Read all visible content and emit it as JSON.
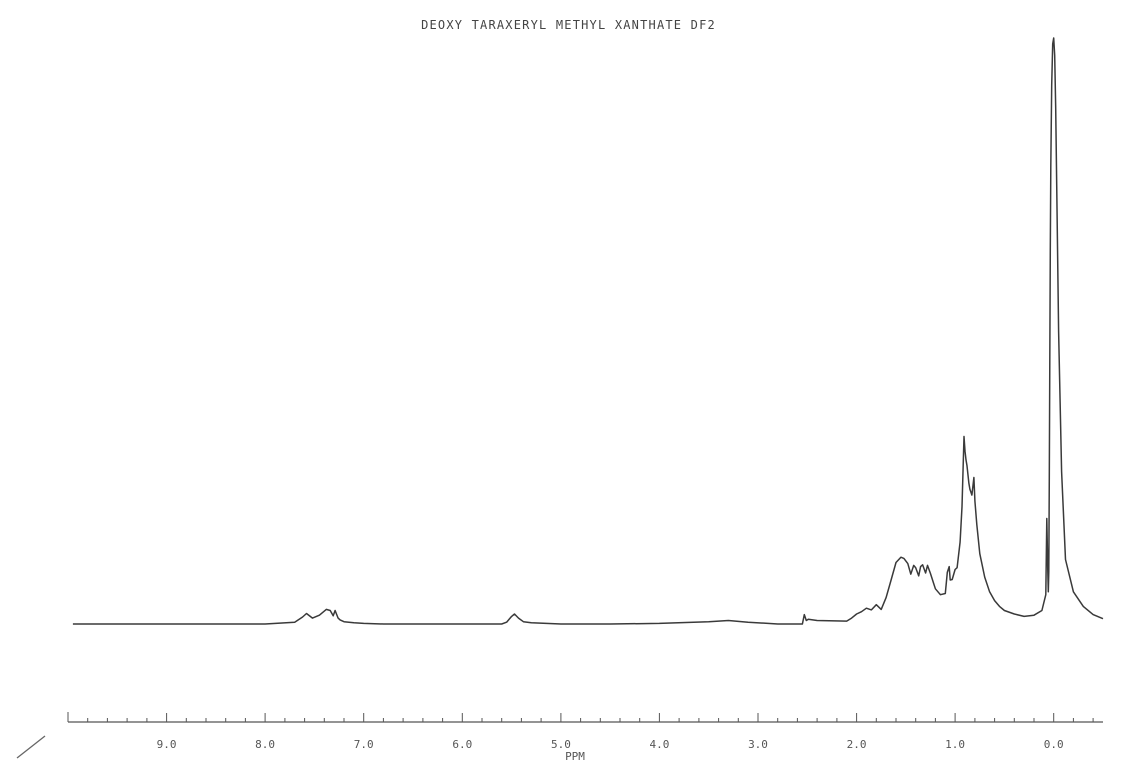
{
  "chart_data": {
    "type": "line",
    "title": "DEOXY TARAXERYL METHYL XANTHATE DF2",
    "xlabel": "PPM",
    "ylabel": "",
    "xlim": [
      10.0,
      -0.5
    ],
    "ylim": [
      0,
      100
    ],
    "grid": false,
    "x_ticks": [
      9.0,
      8.0,
      7.0,
      6.0,
      5.0,
      4.0,
      3.0,
      2.0,
      1.0,
      0.0
    ],
    "tick_labels": [
      "9.0",
      "8.0",
      "7.0",
      "6.0",
      "5.0",
      "4.0",
      "3.0",
      "2.0",
      "1.0",
      "0.0"
    ],
    "series": [
      {
        "x": [
          9.95,
          9.0,
          8.0,
          7.7,
          7.62,
          7.58,
          7.52,
          7.45,
          7.38,
          7.34,
          7.31,
          7.29,
          7.26,
          7.24,
          7.2,
          7.1,
          7.0,
          6.8,
          6.5,
          6.0,
          5.6,
          5.55,
          5.5,
          5.47,
          5.43,
          5.38,
          5.3,
          5.0,
          4.5,
          4.0,
          3.5,
          3.3,
          3.1,
          2.8,
          2.55,
          2.53,
          2.51,
          2.49,
          2.4,
          2.1,
          2.05,
          2.0,
          1.95,
          1.9,
          1.85,
          1.8,
          1.75,
          1.7,
          1.65,
          1.6,
          1.55,
          1.52,
          1.48,
          1.45,
          1.42,
          1.4,
          1.37,
          1.35,
          1.33,
          1.3,
          1.28,
          1.25,
          1.22,
          1.2,
          1.15,
          1.1,
          1.08,
          1.06,
          1.05,
          1.03,
          1.0,
          0.98,
          0.95,
          0.93,
          0.91,
          0.9,
          0.89,
          0.88,
          0.86,
          0.85,
          0.84,
          0.83,
          0.82,
          0.81,
          0.8,
          0.78,
          0.75,
          0.7,
          0.65,
          0.6,
          0.55,
          0.5,
          0.4,
          0.3,
          0.2,
          0.12,
          0.08,
          0.07,
          0.06,
          0.055,
          0.05,
          0.045,
          0.04,
          0.035,
          0.03,
          0.02,
          0.01,
          0.0,
          -0.01,
          -0.02,
          -0.03,
          -0.05,
          -0.08,
          -0.12,
          -0.2,
          -0.3,
          -0.4,
          -0.5
        ],
        "y": [
          0,
          0,
          0,
          0.3,
          1.2,
          1.8,
          1.0,
          1.5,
          2.5,
          2.3,
          1.4,
          2.3,
          1.0,
          0.7,
          0.4,
          0.2,
          0.1,
          0,
          0,
          0,
          0,
          0.3,
          1.3,
          1.7,
          1.0,
          0.4,
          0.2,
          0,
          0,
          0.1,
          0.4,
          0.6,
          0.3,
          0,
          0,
          1.6,
          0.6,
          0.8,
          0.6,
          0.5,
          1.0,
          1.7,
          2.1,
          2.7,
          2.4,
          3.3,
          2.5,
          4.5,
          7.5,
          10.5,
          11.4,
          11.2,
          10.3,
          8.5,
          10.0,
          9.6,
          8.2,
          9.8,
          10.1,
          8.7,
          10.0,
          8.6,
          7.0,
          6.0,
          5.0,
          5.2,
          8.8,
          9.8,
          7.5,
          7.6,
          9.3,
          9.6,
          14.0,
          20.0,
          32.0,
          29.5,
          28.0,
          27.0,
          24.0,
          23.0,
          22.5,
          22.0,
          23.5,
          25.0,
          21.0,
          17.0,
          12.0,
          8.0,
          5.5,
          4.0,
          3.0,
          2.3,
          1.7,
          1.3,
          1.5,
          2.3,
          5.0,
          18.0,
          9.0,
          5.5,
          9.0,
          25.0,
          45.0,
          64.0,
          78.0,
          92.0,
          99.0,
          100.0,
          97.0,
          88.0,
          75.0,
          50.0,
          26.0,
          11.0,
          5.5,
          3.0,
          1.6,
          0.9
        ]
      }
    ]
  }
}
